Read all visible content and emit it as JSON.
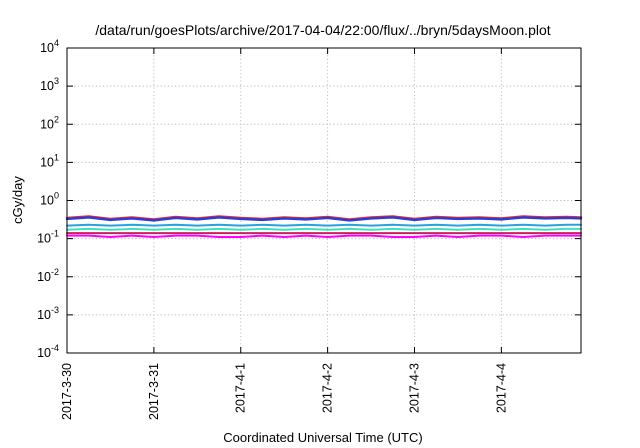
{
  "chart_data": {
    "type": "line",
    "title": "/data/run/goesPlots/archive/2017-04-04/22:00/flux/../bryn/5daysMoon.plot",
    "xlabel": "Coordinated Universal Time (UTC)",
    "ylabel": "cGy/day",
    "yscale": "log",
    "ylim": [
      0.0001,
      10000
    ],
    "xlim": [
      "2017-03-30T00:00",
      "2017-04-04T22:00"
    ],
    "grid": true,
    "legend": "none",
    "y_ticks": [
      {
        "base": "10",
        "exp": "-4",
        "value": 0.0001
      },
      {
        "base": "10",
        "exp": "-3",
        "value": 0.001
      },
      {
        "base": "10",
        "exp": "-2",
        "value": 0.01
      },
      {
        "base": "10",
        "exp": "-1",
        "value": 0.1
      },
      {
        "base": "10",
        "exp": "0",
        "value": 1
      },
      {
        "base": "10",
        "exp": "1",
        "value": 10
      },
      {
        "base": "10",
        "exp": "2",
        "value": 100
      },
      {
        "base": "10",
        "exp": "3",
        "value": 1000
      },
      {
        "base": "10",
        "exp": "4",
        "value": 10000
      }
    ],
    "x_ticks": [
      {
        "label": "2017-3-30",
        "value": "2017-03-30T00:00"
      },
      {
        "label": "2017-3-31",
        "value": "2017-03-31T00:00"
      },
      {
        "label": "2017-4-1",
        "value": "2017-04-01T00:00"
      },
      {
        "label": "2017-4-2",
        "value": "2017-04-02T00:00"
      },
      {
        "label": "2017-4-3",
        "value": "2017-04-03T00:00"
      },
      {
        "label": "2017-4-4",
        "value": "2017-04-04T00:00"
      }
    ],
    "x": [
      "2017-03-30T00:00",
      "2017-03-30T06:00",
      "2017-03-30T12:00",
      "2017-03-30T18:00",
      "2017-03-31T00:00",
      "2017-03-31T06:00",
      "2017-03-31T12:00",
      "2017-03-31T18:00",
      "2017-04-01T00:00",
      "2017-04-01T06:00",
      "2017-04-01T12:00",
      "2017-04-01T18:00",
      "2017-04-02T00:00",
      "2017-04-02T06:00",
      "2017-04-02T12:00",
      "2017-04-02T18:00",
      "2017-04-03T00:00",
      "2017-04-03T06:00",
      "2017-04-03T12:00",
      "2017-04-03T18:00",
      "2017-04-04T00:00",
      "2017-04-04T06:00",
      "2017-04-04T12:00",
      "2017-04-04T18:00",
      "2017-04-04T22:00"
    ],
    "series": [
      {
        "color": "#ff00ff",
        "values": [
          0.12,
          0.12,
          0.11,
          0.12,
          0.11,
          0.12,
          0.12,
          0.11,
          0.11,
          0.12,
          0.11,
          0.12,
          0.11,
          0.12,
          0.12,
          0.11,
          0.11,
          0.12,
          0.11,
          0.12,
          0.12,
          0.11,
          0.12,
          0.12,
          0.12
        ]
      },
      {
        "color": "#cc1f5a",
        "values": [
          0.14,
          0.14,
          0.14,
          0.14,
          0.14,
          0.14,
          0.14,
          0.14,
          0.14,
          0.14,
          0.14,
          0.14,
          0.14,
          0.14,
          0.14,
          0.14,
          0.14,
          0.14,
          0.14,
          0.14,
          0.14,
          0.14,
          0.14,
          0.14,
          0.14
        ]
      },
      {
        "color": "#40e0c0",
        "values": [
          0.17,
          0.18,
          0.17,
          0.18,
          0.17,
          0.18,
          0.17,
          0.18,
          0.17,
          0.18,
          0.17,
          0.18,
          0.17,
          0.18,
          0.17,
          0.18,
          0.17,
          0.18,
          0.17,
          0.18,
          0.17,
          0.18,
          0.17,
          0.18,
          0.18
        ]
      },
      {
        "color": "#2aa0dc",
        "values": [
          0.22,
          0.23,
          0.22,
          0.23,
          0.22,
          0.23,
          0.22,
          0.23,
          0.22,
          0.23,
          0.22,
          0.23,
          0.22,
          0.23,
          0.22,
          0.23,
          0.22,
          0.23,
          0.22,
          0.23,
          0.22,
          0.23,
          0.22,
          0.23,
          0.23
        ]
      },
      {
        "color": "#e8282a",
        "values": [
          0.35,
          0.38,
          0.33,
          0.36,
          0.32,
          0.37,
          0.34,
          0.38,
          0.35,
          0.33,
          0.36,
          0.34,
          0.37,
          0.32,
          0.36,
          0.38,
          0.33,
          0.37,
          0.35,
          0.36,
          0.34,
          0.38,
          0.36,
          0.37,
          0.36
        ]
      },
      {
        "color": "#2b3bd8",
        "values": [
          0.33,
          0.36,
          0.31,
          0.34,
          0.3,
          0.35,
          0.32,
          0.36,
          0.33,
          0.31,
          0.34,
          0.32,
          0.35,
          0.3,
          0.34,
          0.36,
          0.31,
          0.35,
          0.33,
          0.34,
          0.32,
          0.36,
          0.34,
          0.35,
          0.34
        ]
      }
    ]
  }
}
